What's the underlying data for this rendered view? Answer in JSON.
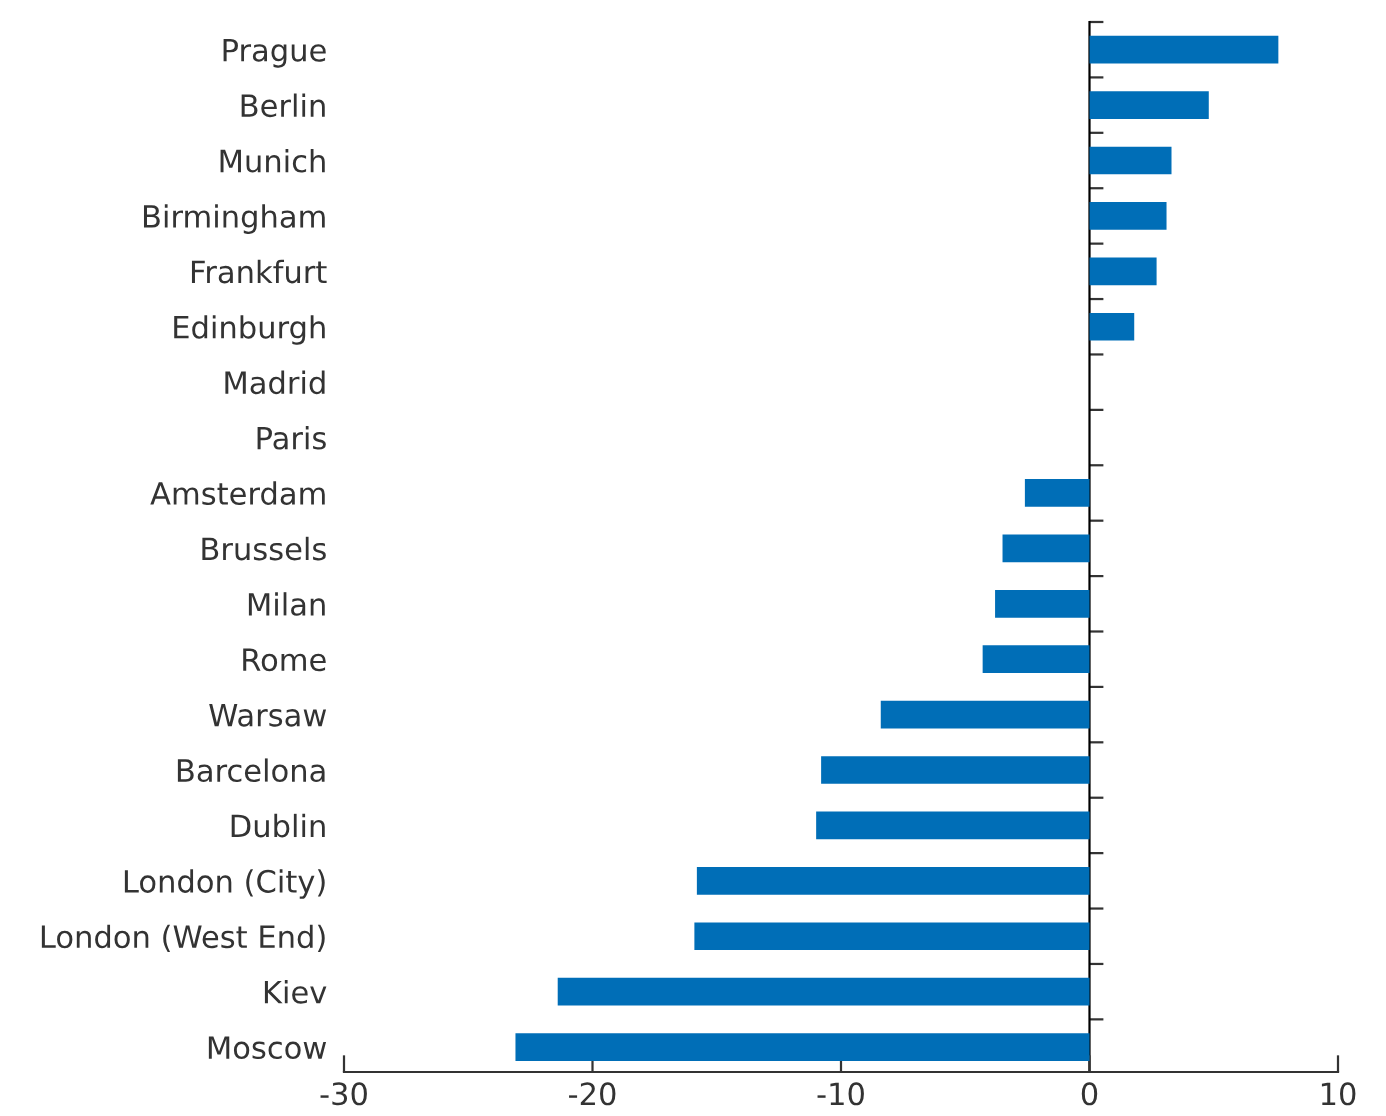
{
  "chart_data": {
    "type": "bar",
    "orientation": "horizontal",
    "categories": [
      "Prague",
      "Berlin",
      "Munich",
      "Birmingham",
      "Frankfurt",
      "Edinburgh",
      "Madrid",
      "Paris",
      "Amsterdam",
      "Brussels",
      "Milan",
      "Rome",
      "Warsaw",
      "Barcelona",
      "Dublin",
      "London (City)",
      "London (West End)",
      "Kiev",
      "Moscow"
    ],
    "values": [
      7.6,
      4.8,
      3.3,
      3.1,
      2.7,
      1.8,
      0,
      0,
      -2.6,
      -3.5,
      -3.8,
      -4.3,
      -8.4,
      -10.8,
      -11.0,
      -15.8,
      -15.9,
      -21.4,
      -23.1
    ],
    "color": "#006eb7",
    "xlim": [
      -30,
      10
    ],
    "xticks": [
      -30,
      -20,
      -10,
      0,
      10
    ]
  }
}
